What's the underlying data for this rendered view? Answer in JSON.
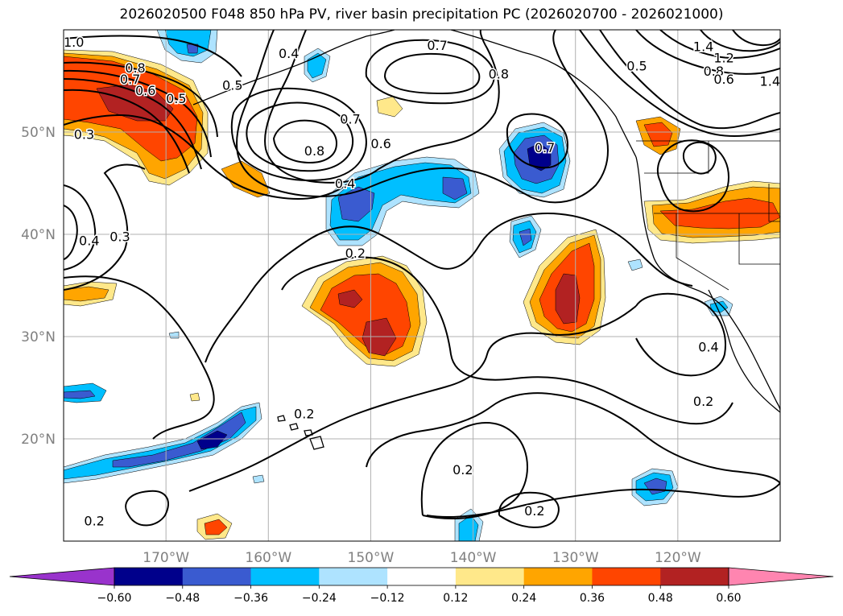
{
  "title": "2026020500 F048 850 hPa PV, river basin precipitation PC (2026020700 - 2026021000)",
  "map": {
    "lon_range": [
      -180,
      -110
    ],
    "lat_range": [
      10,
      60
    ],
    "lat_ticks": [
      {
        "value": 50,
        "label": "50°N"
      },
      {
        "value": 40,
        "label": "40°N"
      },
      {
        "value": 30,
        "label": "30°N"
      },
      {
        "value": 20,
        "label": "20°N"
      }
    ],
    "lon_ticks": [
      {
        "value": -170,
        "label": "170°W"
      },
      {
        "value": -160,
        "label": "160°W"
      },
      {
        "value": -150,
        "label": "150°W"
      },
      {
        "value": -140,
        "label": "140°W"
      },
      {
        "value": -130,
        "label": "130°W"
      },
      {
        "value": -120,
        "label": "120°W"
      }
    ],
    "grid": true
  },
  "contour_labels": [
    {
      "text": "1.0",
      "lon": -179,
      "lat": 58.8
    },
    {
      "text": "0.8",
      "lon": -173,
      "lat": 56.3
    },
    {
      "text": "0.7",
      "lon": -173.5,
      "lat": 55.2
    },
    {
      "text": "0.6",
      "lon": -172,
      "lat": 54.1
    },
    {
      "text": "0.5",
      "lon": -169,
      "lat": 53.3
    },
    {
      "text": "0.3",
      "lon": -178,
      "lat": 49.8
    },
    {
      "text": "0.4",
      "lon": -158,
      "lat": 57.7
    },
    {
      "text": "0.5",
      "lon": -163.5,
      "lat": 54.6
    },
    {
      "text": "0.7",
      "lon": -143.5,
      "lat": 58.5
    },
    {
      "text": "0.8",
      "lon": -137.5,
      "lat": 55.7
    },
    {
      "text": "0.7",
      "lon": -152,
      "lat": 51.3
    },
    {
      "text": "0.8",
      "lon": -155.5,
      "lat": 48.2
    },
    {
      "text": "0.6",
      "lon": -149,
      "lat": 48.9
    },
    {
      "text": "0.4",
      "lon": -152.5,
      "lat": 45.0
    },
    {
      "text": "0.7",
      "lon": -133,
      "lat": 48.5
    },
    {
      "text": "0.4",
      "lon": -177.5,
      "lat": 39.4
    },
    {
      "text": "0.3",
      "lon": -174.5,
      "lat": 39.8
    },
    {
      "text": "0.2",
      "lon": -151.5,
      "lat": 38.2
    },
    {
      "text": "0.2",
      "lon": -156.5,
      "lat": 22.5
    },
    {
      "text": "0.2",
      "lon": -141,
      "lat": 17.0
    },
    {
      "text": "0.2",
      "lon": -134,
      "lat": 13.0
    },
    {
      "text": "0.2",
      "lon": -177,
      "lat": 12.0
    },
    {
      "text": "0.4",
      "lon": -117,
      "lat": 29.0
    },
    {
      "text": "0.2",
      "lon": -117.5,
      "lat": 23.7
    },
    {
      "text": "1.4",
      "lon": -117.5,
      "lat": 58.4
    },
    {
      "text": "1.2",
      "lon": -115.5,
      "lat": 57.3
    },
    {
      "text": "0.8",
      "lon": -116.5,
      "lat": 56.0
    },
    {
      "text": "0.6",
      "lon": -115.5,
      "lat": 55.2
    },
    {
      "text": "0.5",
      "lon": -124,
      "lat": 56.5
    },
    {
      "text": "1.4",
      "lon": -111,
      "lat": 55.0
    }
  ],
  "colorbar": {
    "levels": [
      -0.6,
      -0.48,
      -0.36,
      -0.24,
      -0.12,
      0.12,
      0.24,
      0.36,
      0.48,
      0.6
    ],
    "tick_labels": [
      "−0.60",
      "−0.48",
      "−0.36",
      "−0.24",
      "−0.12",
      "0.12",
      "0.24",
      "0.36",
      "0.48",
      "0.60"
    ],
    "colors": [
      "#9933cc",
      "#00008b",
      "#3a5bd0",
      "#00bfff",
      "#aee3ff",
      "#ffffff",
      "#ffe88a",
      "#ffa500",
      "#ff4500",
      "#b22222",
      "#ff85b0"
    ]
  }
}
